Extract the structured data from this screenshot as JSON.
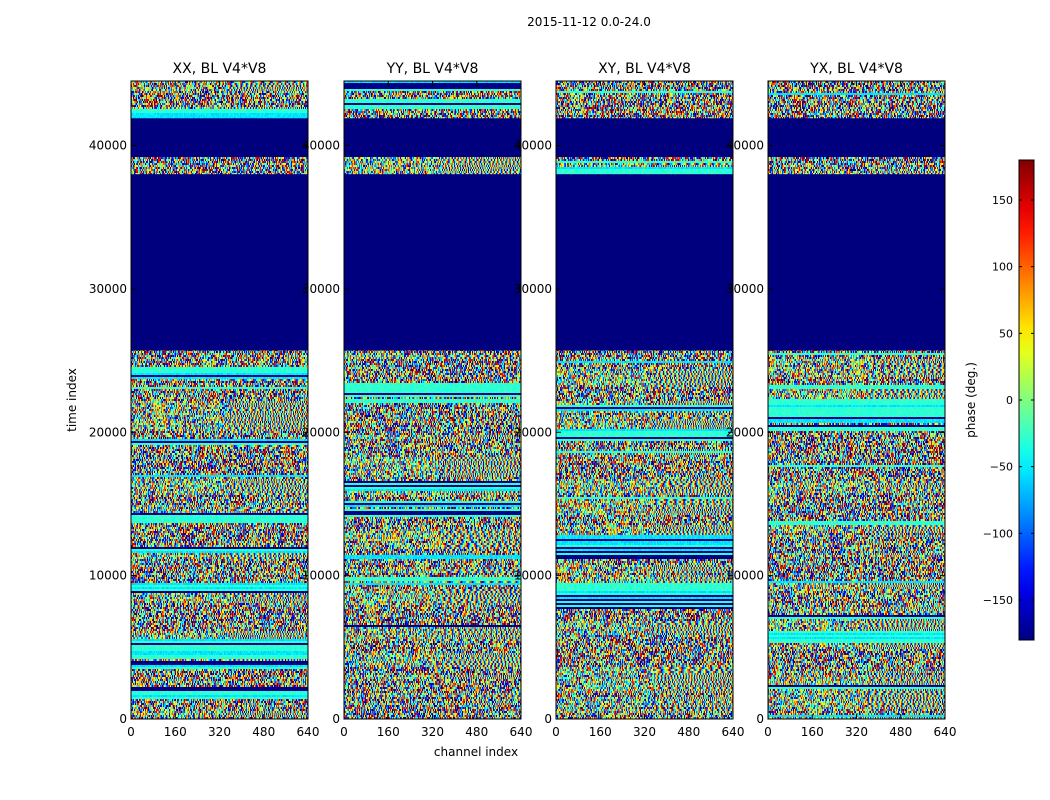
{
  "chart_data": {
    "type": "heatmap",
    "title": "2015-11-12 0.0-24.0",
    "xlabel": "channel index",
    "ylabel": "time index",
    "xlim": [
      0,
      640
    ],
    "ylim": [
      0,
      44500
    ],
    "x_ticks": [
      0,
      160,
      320,
      480,
      640
    ],
    "y_ticks": [
      0,
      10000,
      20000,
      30000,
      40000
    ],
    "panels": [
      {
        "title": "XX, BL V4*V8"
      },
      {
        "title": "YY, BL V4*V8"
      },
      {
        "title": "XY, BL V4*V8"
      },
      {
        "title": "YX, BL V4*V8"
      }
    ],
    "flagged_time_ranges": [
      [
        25700,
        38000
      ],
      [
        39200,
        41900
      ]
    ],
    "colorbar": {
      "label": "phase (deg.)",
      "range": [
        -180,
        180
      ],
      "ticks": [
        -150,
        -100,
        -50,
        0,
        50,
        100,
        150
      ],
      "tick_labels": [
        "−150",
        "−100",
        "−50",
        "0",
        "50",
        "100",
        "150"
      ],
      "colormap": "jet"
    }
  }
}
